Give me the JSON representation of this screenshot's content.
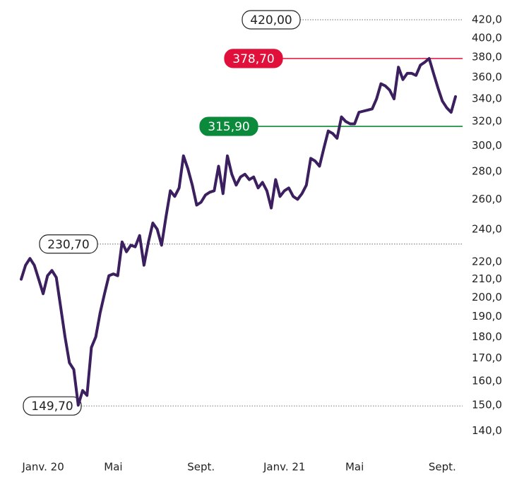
{
  "chart_data": {
    "type": "line",
    "log_scale": true,
    "categories": [
      null,
      null,
      null,
      null,
      null,
      "Janv. 20",
      null,
      null,
      null,
      null,
      null,
      null,
      null,
      null,
      null,
      null,
      null,
      null,
      null,
      null,
      null,
      "Mai",
      null,
      null,
      null,
      null,
      null,
      null,
      null,
      null,
      null,
      null,
      null,
      null,
      null,
      null,
      null,
      null,
      null,
      null,
      null,
      "Sept.",
      null,
      null,
      null,
      null,
      null,
      null,
      null,
      null,
      null,
      null,
      null,
      null,
      null,
      null,
      null,
      null,
      null,
      null,
      "Janv. 21",
      null,
      null,
      null,
      null,
      null,
      null,
      null,
      null,
      null,
      null,
      null,
      null,
      null,
      null,
      null,
      "Mai",
      null,
      null,
      null,
      null,
      null,
      null,
      null,
      null,
      null,
      null,
      null,
      null,
      null,
      null,
      null,
      null,
      null,
      null,
      null,
      "Sept.",
      null,
      null,
      null
    ],
    "series": [
      {
        "color": "#3b1f5e",
        "values": [
          210,
          218,
          222,
          218,
          210,
          202,
          212,
          215,
          211,
          195,
          180,
          168,
          165,
          150,
          156,
          154,
          175,
          180,
          192,
          202,
          212,
          213,
          212,
          232,
          226,
          230,
          229,
          236,
          218,
          232,
          244,
          240,
          230,
          248,
          266,
          262,
          268,
          292,
          282,
          270,
          256,
          258,
          263,
          265,
          266,
          284,
          264,
          292,
          278,
          270,
          276,
          278,
          274,
          276,
          268,
          272,
          266,
          254,
          274,
          262,
          266,
          268,
          262,
          260,
          264,
          270,
          290,
          288,
          284,
          298,
          312,
          310,
          306,
          324,
          320,
          318,
          318,
          328,
          329,
          330,
          331,
          340,
          354,
          352,
          348,
          340,
          370,
          358,
          364,
          364,
          362,
          372,
          375,
          378.7,
          364,
          350,
          338,
          332,
          328,
          342
        ]
      }
    ],
    "ylim": [
      135,
      440
    ],
    "yticks": [
      {
        "value": 420,
        "label": "420,0"
      },
      {
        "value": 400,
        "label": "400,0"
      },
      {
        "value": 380,
        "label": "380,0"
      },
      {
        "value": 360,
        "label": "360,0"
      },
      {
        "value": 340,
        "label": "340,0"
      },
      {
        "value": 320,
        "label": "320,0"
      },
      {
        "value": 300,
        "label": "300,0"
      },
      {
        "value": 280,
        "label": "280,0"
      },
      {
        "value": 260,
        "label": "260,0"
      },
      {
        "value": 240,
        "label": "240,0"
      },
      {
        "value": 220,
        "label": "220,0"
      },
      {
        "value": 210,
        "label": "210,0"
      },
      {
        "value": 200,
        "label": "200,0"
      },
      {
        "value": 190,
        "label": "190,0"
      },
      {
        "value": 180,
        "label": "180,0"
      },
      {
        "value": 170,
        "label": "170,0"
      },
      {
        "value": 160,
        "label": "160,0"
      },
      {
        "value": 150,
        "label": "150,0"
      },
      {
        "value": 140,
        "label": "140,0"
      }
    ],
    "reference_lines": [
      {
        "value": 420,
        "label": "420,00",
        "color": "#888888",
        "style": "dotted"
      },
      {
        "value": 378.7,
        "label": "378,70",
        "color": "#e0103a",
        "style": "solid"
      },
      {
        "value": 315.9,
        "label": "315,90",
        "color": "#0a8a3a",
        "style": "solid"
      },
      {
        "value": 230.7,
        "label": "230,70",
        "color": "#888888",
        "style": "dotted"
      },
      {
        "value": 149.7,
        "label": "149,70",
        "color": "#888888",
        "style": "dotted"
      }
    ]
  }
}
